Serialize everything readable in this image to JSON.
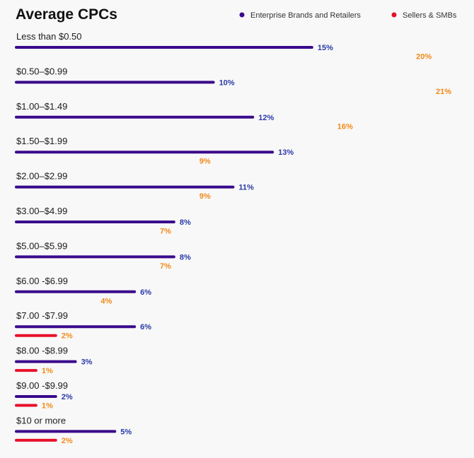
{
  "chart_data": {
    "type": "bar",
    "orientation": "horizontal",
    "title": "Average CPCs",
    "legend_position": "top-right",
    "categories": [
      "Less than $0.50",
      "$0.50–$0.99",
      "$1.00–$1.49",
      "$1.50–$1.99",
      "$2.00–$2.99",
      "$3.00–$4.99",
      "$5.00–$5.99",
      "$6.00 -$6.99",
      "$7.00 -$7.99",
      "$8.00 -$8.99",
      "$9.00 -$9.99",
      "$10 or more"
    ],
    "series": [
      {
        "name": "Enterprise Brands and Retailers",
        "color": "#3a0a8c",
        "label_color": "#2a3aa8",
        "values": [
          15,
          10,
          12,
          13,
          11,
          8,
          8,
          6,
          6,
          3,
          2,
          5
        ],
        "value_labels": [
          "15%",
          "10%",
          "12%",
          "13%",
          "11%",
          "8%",
          "8%",
          "6%",
          "6%",
          "3%",
          "2%",
          "5%"
        ]
      },
      {
        "name": "Sellers & SMBs",
        "color": "#e8102a",
        "color_end": "#f25a18",
        "label_color": "#f08a18",
        "values": [
          20,
          21,
          16,
          9,
          9,
          7,
          7,
          4,
          2,
          1,
          1,
          2
        ],
        "value_labels": [
          "20%",
          "21%",
          "16%",
          "9%",
          "9%",
          "7%",
          "7%",
          "4%",
          "2%",
          "1%",
          "1%",
          "2%"
        ]
      }
    ],
    "xlim": [
      0,
      21
    ],
    "grid": false
  }
}
